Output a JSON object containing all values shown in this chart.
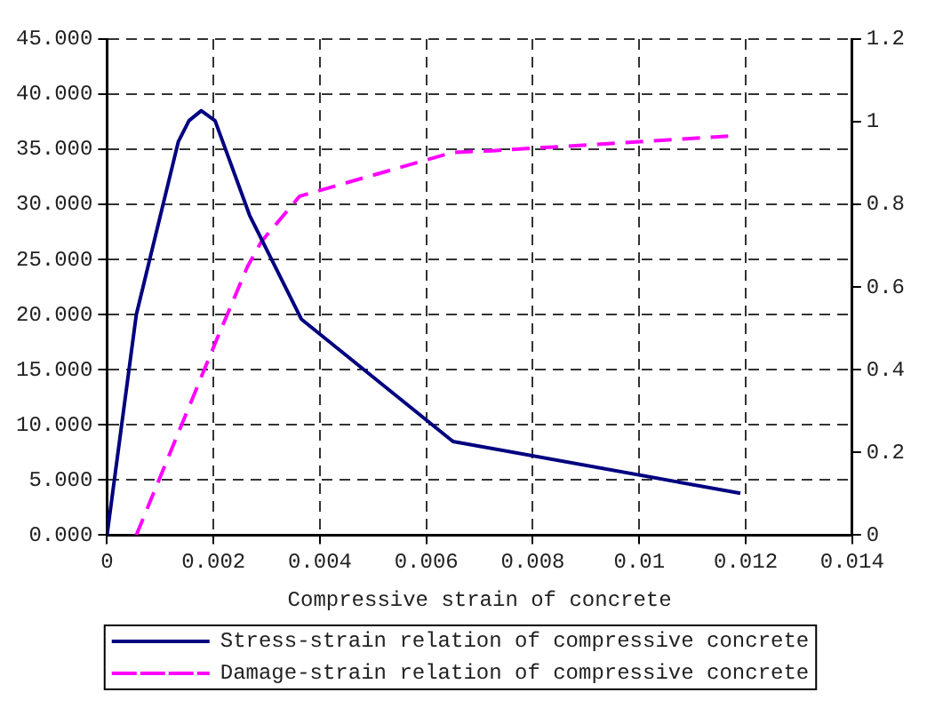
{
  "chart_data": {
    "type": "line",
    "xlabel": "Compressive strain of concrete",
    "xlim": [
      0,
      0.014
    ],
    "xticks": [
      0,
      0.002,
      0.004,
      0.006,
      0.008,
      0.01,
      0.012,
      0.014
    ],
    "ylim": [
      0,
      45
    ],
    "yticks": [
      {
        "value": 0,
        "label": "0.000"
      },
      {
        "value": 5,
        "label": "5.000"
      },
      {
        "value": 10,
        "label": "10.000"
      },
      {
        "value": 15,
        "label": "15.000"
      },
      {
        "value": 20,
        "label": "20.000"
      },
      {
        "value": 25,
        "label": "25.000"
      },
      {
        "value": 30,
        "label": "30.000"
      },
      {
        "value": 35,
        "label": "35.000"
      },
      {
        "value": 40,
        "label": "40.000"
      },
      {
        "value": 45,
        "label": "45.000"
      }
    ],
    "y2lim": [
      0,
      1.2
    ],
    "y2ticks": [
      0,
      0.2,
      0.4,
      0.6,
      0.8,
      1,
      1.2
    ],
    "grid": true,
    "legend": "bottom",
    "marker": "none",
    "series": [
      {
        "name": "Stress-strain relation of compressive concrete",
        "color": "#000080",
        "line_style": "solid",
        "x": [
          0,
          0.00055,
          0.00134,
          0.00154,
          0.00177,
          0.00203,
          0.00268,
          0.00365,
          0.0065,
          0.0119
        ],
        "values": [
          0,
          20,
          35.7,
          37.6,
          38.5,
          37.6,
          29,
          19.6,
          8.5,
          3.8
        ]
      },
      {
        "name": "Damage-strain relation of compressive concrete",
        "color": "#ff00ff",
        "line_style": "dashed",
        "axis": "y2",
        "x": [
          0.00055,
          0.00205,
          0.00264,
          0.0029,
          0.00362,
          0.0065,
          0.00725,
          0.01167
        ],
        "values": [
          0,
          0.47,
          0.65,
          0.71,
          0.82,
          0.926,
          0.93,
          0.965
        ]
      }
    ]
  }
}
